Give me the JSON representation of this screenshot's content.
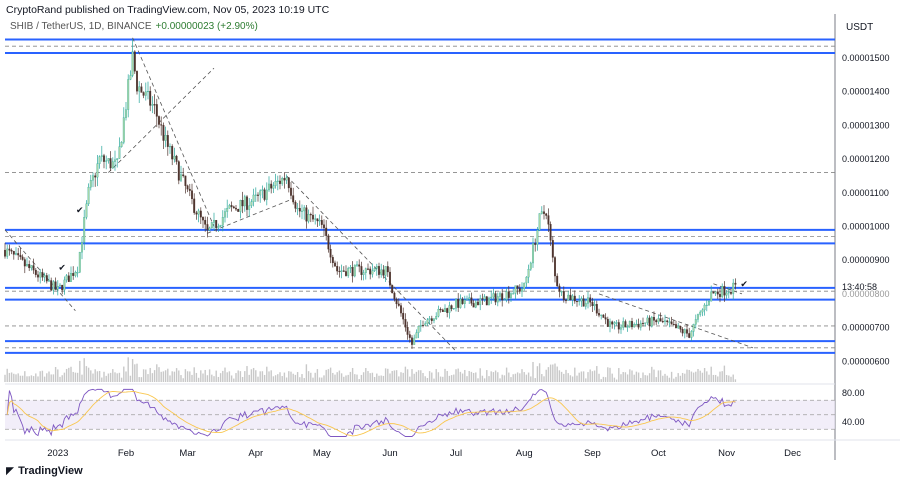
{
  "header": {
    "published": "CryptoRand published on TradingView.com, Nov 05, 2023 10:19 UTC",
    "symbol": "SHIB / TetherUS, 1D, BINANCE",
    "change": "+0.00000023 (+2.90%)",
    "currency": "USDT"
  },
  "footer": {
    "brand": "TradingView",
    "logo_icon": "tradingview-logo-icon"
  },
  "chart_data": {
    "type": "candlestick",
    "price_unit": "1e-9 USDT",
    "ylim": [
      580,
      1620
    ],
    "price_ticks": [
      {
        "v": 1500,
        "label": "0.00001500"
      },
      {
        "v": 1400,
        "label": "0.00001400"
      },
      {
        "v": 1300,
        "label": "0.00001300"
      },
      {
        "v": 1200,
        "label": "0.00001200"
      },
      {
        "v": 1100,
        "label": "0.00001100"
      },
      {
        "v": 1000,
        "label": "0.00001000"
      },
      {
        "v": 900,
        "label": "0.00000900"
      },
      {
        "v": 800,
        "label": "0.00000800"
      },
      {
        "v": 700,
        "label": "0.00000700"
      },
      {
        "v": 600,
        "label": "0.00000600"
      }
    ],
    "countdown": "13:40:58",
    "time_ticks": [
      {
        "day": 24,
        "label": "2023"
      },
      {
        "day": 55,
        "label": "Feb"
      },
      {
        "day": 83,
        "label": "Mar"
      },
      {
        "day": 114,
        "label": "Apr"
      },
      {
        "day": 144,
        "label": "May"
      },
      {
        "day": 175,
        "label": "Jun"
      },
      {
        "day": 205,
        "label": "Jul"
      },
      {
        "day": 236,
        "label": "Aug"
      },
      {
        "day": 267,
        "label": "Sep"
      },
      {
        "day": 297,
        "label": "Oct"
      },
      {
        "day": 328,
        "label": "Nov"
      },
      {
        "day": 358,
        "label": "Dec"
      }
    ],
    "last_day": 332,
    "price_path": [
      [
        0,
        930
      ],
      [
        12,
        870
      ],
      [
        24,
        810
      ],
      [
        33,
        880
      ],
      [
        38,
        1100
      ],
      [
        43,
        1200
      ],
      [
        51,
        1180
      ],
      [
        58,
        1500
      ],
      [
        60,
        1420
      ],
      [
        68,
        1350
      ],
      [
        73,
        1250
      ],
      [
        83,
        1100
      ],
      [
        92,
        980
      ],
      [
        102,
        1050
      ],
      [
        114,
        1080
      ],
      [
        128,
        1150
      ],
      [
        133,
        1050
      ],
      [
        144,
        1000
      ],
      [
        151,
        870
      ],
      [
        173,
        870
      ],
      [
        185,
        650
      ],
      [
        190,
        720
      ],
      [
        205,
        770
      ],
      [
        219,
        780
      ],
      [
        236,
        820
      ],
      [
        243,
        1020
      ],
      [
        246,
        1050
      ],
      [
        250,
        850
      ],
      [
        253,
        800
      ],
      [
        267,
        770
      ],
      [
        276,
        700
      ],
      [
        297,
        720
      ],
      [
        311,
        680
      ],
      [
        321,
        800
      ],
      [
        332,
        820
      ]
    ],
    "levels_solid": [
      1555,
      1515,
      990,
      950,
      818,
      783,
      660,
      625
    ],
    "levels_dashed": [
      1535,
      1160,
      970,
      808,
      705,
      640
    ],
    "trendlines": [
      [
        0,
        990,
        32,
        750
      ],
      [
        58,
        1560,
        95,
        1000
      ],
      [
        47,
        1160,
        95,
        1470
      ],
      [
        92,
        980,
        130,
        1080
      ],
      [
        128,
        1150,
        205,
        630
      ],
      [
        270,
        800,
        340,
        640
      ],
      [
        322,
        830,
        335,
        800
      ]
    ],
    "rsi": {
      "ticks": [
        {
          "v": 80,
          "label": "80.00"
        },
        {
          "v": 40,
          "label": "40.00"
        }
      ],
      "band": [
        70,
        30
      ]
    },
    "colors": {
      "up": "#26a69a",
      "down": "#4e342e",
      "level": "#2962ff",
      "rsi": "#7e57c2",
      "rsi_ma": "#f9c74f"
    }
  }
}
